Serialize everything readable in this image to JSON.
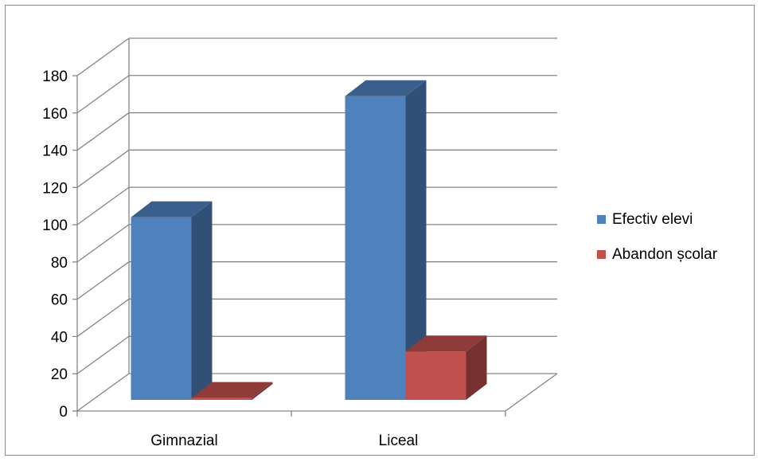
{
  "chart_data": {
    "type": "bar",
    "style": "3d-clustered-column",
    "categories": [
      "Gimnazial",
      "Liceal"
    ],
    "series": [
      {
        "name": "Efectiv elevi",
        "values": [
          98,
          163
        ],
        "color": "#4F81BD"
      },
      {
        "name": "Abandon școlar",
        "values": [
          1,
          26
        ],
        "color": "#C0504D"
      }
    ],
    "y_ticks": [
      "0",
      "20",
      "40",
      "60",
      "80",
      "100",
      "120",
      "140",
      "160",
      "180"
    ],
    "ylim": [
      0,
      180
    ],
    "grid": true,
    "legend_position": "right"
  }
}
